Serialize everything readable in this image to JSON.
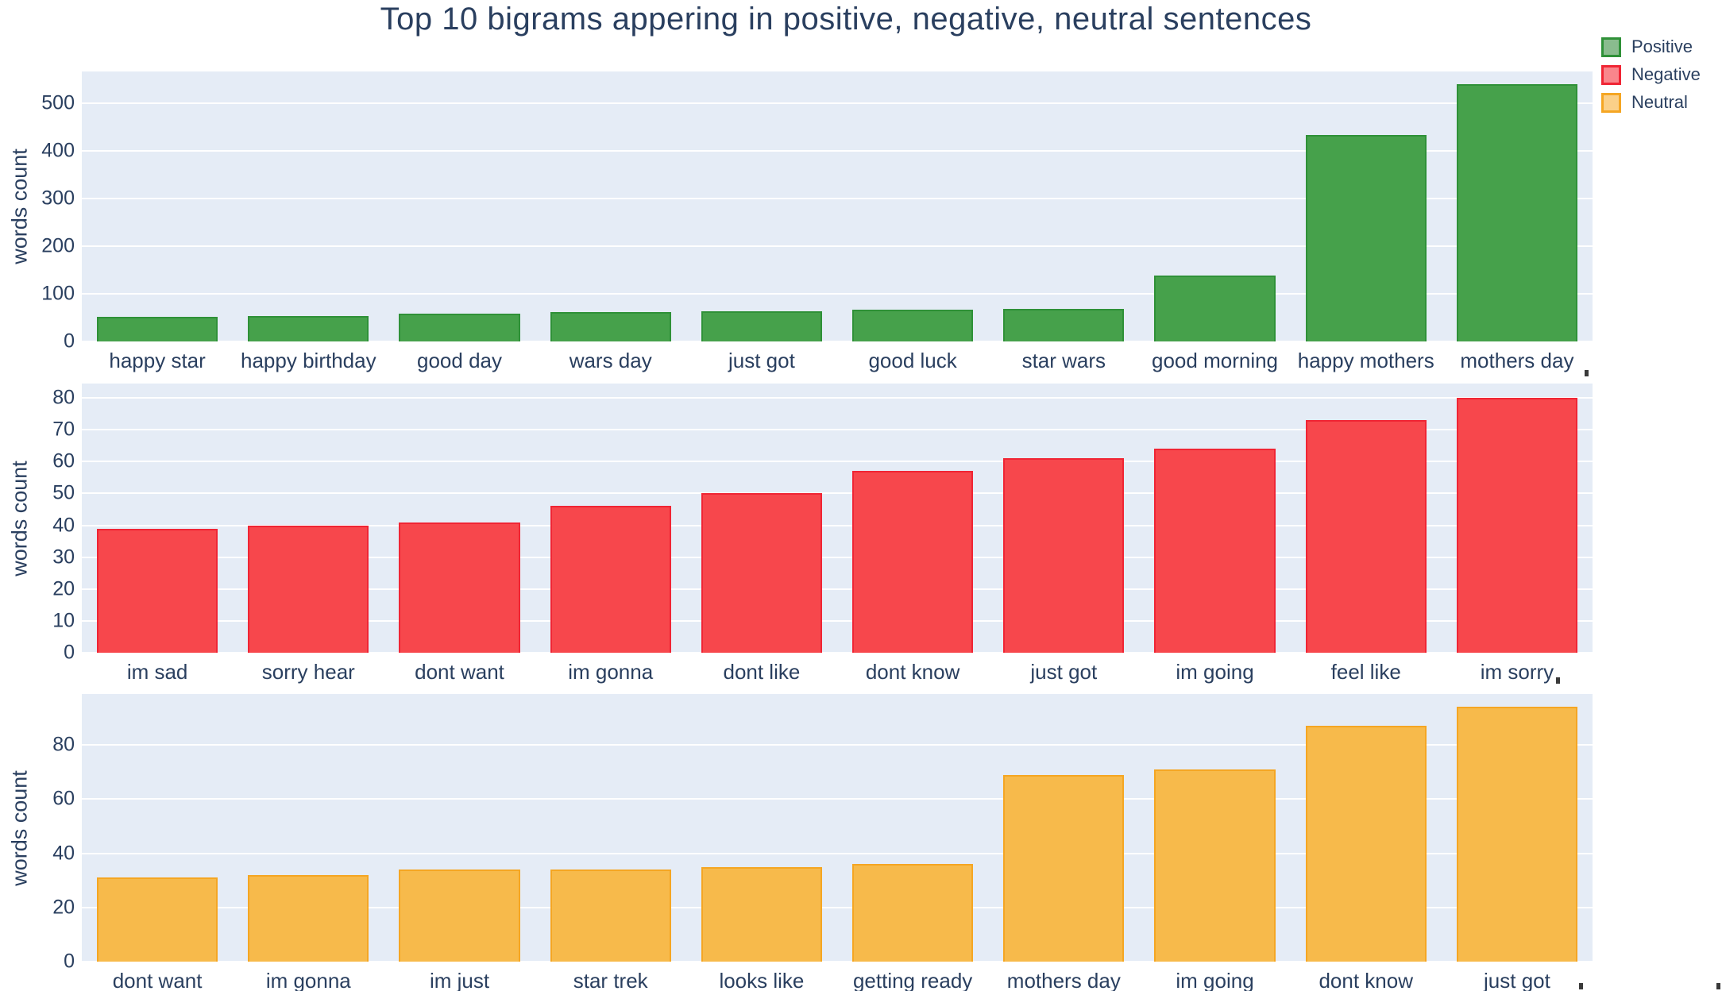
{
  "title": "Top 10 bigrams appering in positive, negative, neutral sentences",
  "colors": {
    "text": "#2a3f5f",
    "plot_background": "#e5ecf6",
    "gridline": "#ffffff",
    "positive": "#46a14b",
    "negative": "#f7474c",
    "neutral": "#f7ba4b"
  },
  "legend": {
    "items": [
      {
        "label": "Positive",
        "fill": "#8abc8e",
        "border": "#2f9138"
      },
      {
        "label": "Negative",
        "fill": "#f9868c",
        "border": "#f02534"
      },
      {
        "label": "Neutral",
        "fill": "#fbd089",
        "border": "#f5a623"
      }
    ]
  },
  "chart_data": [
    {
      "type": "bar",
      "name": "Positive",
      "categories": [
        "happy star",
        "happy birthday",
        "good day",
        "wars day",
        "just got",
        "good luck",
        "star wars",
        "good morning",
        "happy mothers",
        "mothers day"
      ],
      "values": [
        52,
        54,
        58,
        61,
        63,
        66,
        68,
        139,
        433,
        540
      ],
      "ylabel": "words count",
      "ylim": [
        0,
        567
      ],
      "yticks": [
        0,
        100,
        200,
        300,
        400,
        500
      ],
      "grid": true,
      "bar_color": "#46a14b",
      "bar_line_color": "#2f9138"
    },
    {
      "type": "bar",
      "name": "Negative",
      "categories": [
        "im sad",
        "sorry hear",
        "dont want",
        "im gonna",
        "dont like",
        "dont know",
        "just got",
        "im going",
        "feel like",
        "im sorry"
      ],
      "values": [
        39,
        40,
        41,
        46,
        50,
        57,
        61,
        64,
        73,
        80
      ],
      "ylabel": "words count",
      "ylim": [
        0,
        84.5
      ],
      "yticks": [
        0,
        10,
        20,
        30,
        40,
        50,
        60,
        70,
        80
      ],
      "grid": true,
      "bar_color": "#f7474c",
      "bar_line_color": "#f02534"
    },
    {
      "type": "bar",
      "name": "Neutral",
      "categories": [
        "dont want",
        "im gonna",
        "im just",
        "star trek",
        "looks like",
        "getting ready",
        "mothers day",
        "im going",
        "dont know",
        "just got"
      ],
      "values": [
        31,
        32,
        34,
        34,
        35,
        36,
        69,
        71,
        87,
        94
      ],
      "ylabel": "words count",
      "ylim": [
        0,
        98.8
      ],
      "yticks": [
        0,
        20,
        40,
        60,
        80
      ],
      "grid": true,
      "bar_color": "#f7ba4b",
      "bar_line_color": "#f5a623"
    }
  ]
}
